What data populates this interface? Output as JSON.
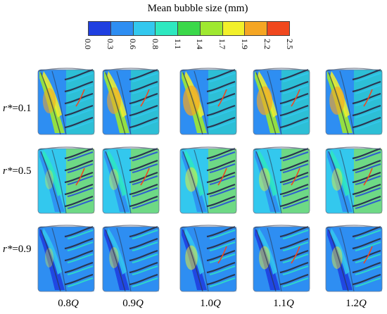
{
  "legend": {
    "title": "Mean bubble size (mm)",
    "colors": [
      "#1f3fe0",
      "#2e8ef2",
      "#33c8ee",
      "#2ee8c0",
      "#3bd84a",
      "#9fe830",
      "#f2f02a",
      "#f5a623",
      "#f0481e"
    ],
    "ticks": [
      "0.0",
      "0.3",
      "0.6",
      "0.8",
      "1.1",
      "1.4",
      "1.7",
      "1.9",
      "2.2",
      "2.5"
    ]
  },
  "rows": [
    {
      "label_prefix": "r*",
      "label_suffix": "=0.1"
    },
    {
      "label_prefix": "r*",
      "label_suffix": "=0.5"
    },
    {
      "label_prefix": "r*",
      "label_suffix": "=0.9"
    }
  ],
  "columns": [
    {
      "num": "0.8",
      "unit": "Q"
    },
    {
      "num": "0.9",
      "unit": "Q"
    },
    {
      "num": "1.0",
      "unit": "Q"
    },
    {
      "num": "1.1",
      "unit": "Q"
    },
    {
      "num": "1.2",
      "unit": "Q"
    }
  ]
}
